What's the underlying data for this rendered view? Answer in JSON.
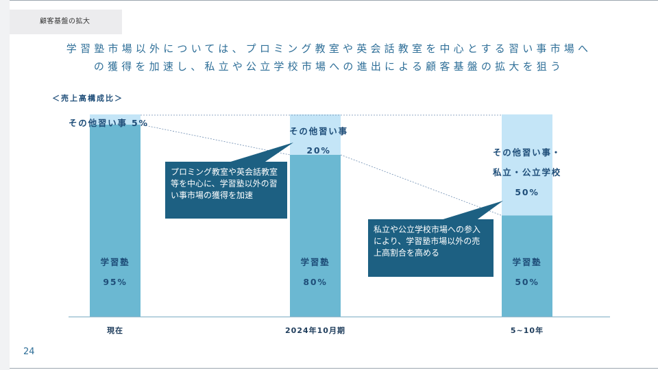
{
  "section_title": "顧客基盤の拡大",
  "headline": {
    "line1": "学習塾市場以外については、プロミング教室や英会話教室を中心とする習い事市場へ",
    "line2": "の獲得を加速し、私立や公立学校市場への進出による顧客基盤の拡大を狙う"
  },
  "chart_subtitle": "＜売上高構成比＞",
  "chart_data": {
    "type": "bar",
    "stacked": true,
    "categories": [
      "現在",
      "2024年10月期",
      "5~10年"
    ],
    "ylim": [
      0,
      100
    ],
    "grid": false,
    "series": [
      {
        "name": "学習塾",
        "values": [
          95,
          80,
          50
        ],
        "color": "#6bb8d2",
        "labels": [
          {
            "name": "学習塾",
            "value": "95%"
          },
          {
            "name": "学習塾",
            "value": "80%"
          },
          {
            "name": "学習塾",
            "value": "50%"
          }
        ]
      },
      {
        "name": "その他習い事",
        "values": [
          5,
          20,
          50
        ],
        "color": "#c4e5f7",
        "labels": [
          {
            "name": "その他習い事",
            "value": "5%"
          },
          {
            "name": "その他習い事",
            "value": "20%"
          },
          {
            "name1": "その他習い事・",
            "name2": "私立・公立学校",
            "value": "50%"
          }
        ]
      }
    ],
    "annotations": [
      {
        "text": "プロミング教室や英会話教室等を中心に、学習塾以外の習い事市場の獲得を加速",
        "points_to": "2024年10月期"
      },
      {
        "text": "私立や公立学校市場への参入により、学習塾市場以外の売上高割合を高める",
        "points_to": "5~10年"
      }
    ]
  },
  "page_number": "24"
}
